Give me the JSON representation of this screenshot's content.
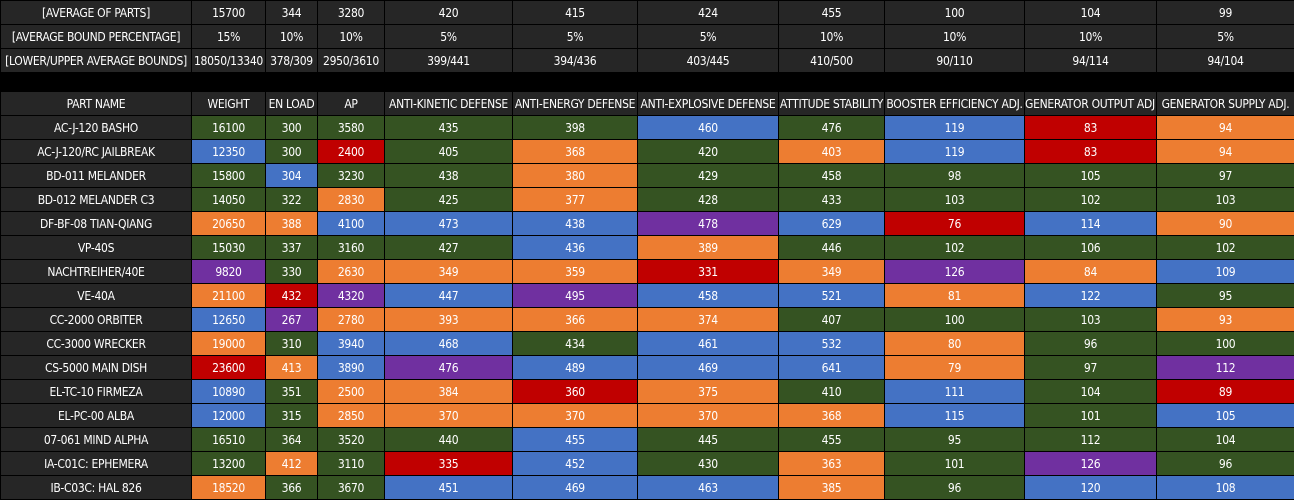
{
  "summary": [
    {
      "label": "[AVERAGE OF PARTS]",
      "values": [
        "15700",
        "344",
        "3280",
        "420",
        "415",
        "424",
        "455",
        "100",
        "104",
        "99"
      ]
    },
    {
      "label": "[AVERAGE BOUND PERCENTAGE]",
      "values": [
        "15%",
        "10%",
        "10%",
        "5%",
        "5%",
        "5%",
        "10%",
        "10%",
        "10%",
        "5%"
      ]
    },
    {
      "label": "[LOWER/UPPER AVERAGE BOUNDS]",
      "values": [
        "18050/13340",
        "378/309",
        "2950/3610",
        "399/441",
        "394/436",
        "403/445",
        "410/500",
        "90/110",
        "94/114",
        "94/104"
      ]
    }
  ],
  "headers": [
    "PART NAME",
    "WEIGHT",
    "EN LOAD",
    "AP",
    "ANTI-KINETIC DEFENSE",
    "ANTI-ENERGY DEFENSE",
    "ANTI-EXPLOSIVE DEFENSE",
    "ATTITUDE STABILITY",
    "BOOSTER EFFICIENCY ADJ.",
    "GENERATOR OUTPUT ADJ.",
    "GENERATOR SUPPLY ADJ."
  ],
  "colors": {
    "green": "#355322",
    "blue": "#4472c4",
    "orange": "#ed7d31",
    "red": "#c00000",
    "purple": "#7030a0",
    "dark": "#262626"
  },
  "rows": [
    {
      "name": "AC-J-120 BASHO",
      "values": [
        "16100",
        "300",
        "3580",
        "435",
        "398",
        "460",
        "476",
        "119",
        "83",
        "94"
      ],
      "colors": [
        "green",
        "green",
        "green",
        "green",
        "green",
        "blue",
        "green",
        "blue",
        "red",
        "orange"
      ]
    },
    {
      "name": "AC-J-120/RC JAILBREAK",
      "values": [
        "12350",
        "300",
        "2400",
        "405",
        "368",
        "420",
        "403",
        "119",
        "83",
        "94"
      ],
      "colors": [
        "blue",
        "green",
        "red",
        "green",
        "orange",
        "green",
        "orange",
        "blue",
        "red",
        "orange"
      ]
    },
    {
      "name": "BD-011 MELANDER",
      "values": [
        "15800",
        "304",
        "3230",
        "438",
        "380",
        "429",
        "458",
        "98",
        "105",
        "97"
      ],
      "colors": [
        "green",
        "blue",
        "green",
        "green",
        "orange",
        "green",
        "green",
        "green",
        "green",
        "green"
      ]
    },
    {
      "name": "BD-012 MELANDER C3",
      "values": [
        "14050",
        "322",
        "2830",
        "425",
        "377",
        "428",
        "433",
        "103",
        "102",
        "103"
      ],
      "colors": [
        "green",
        "green",
        "orange",
        "green",
        "orange",
        "green",
        "green",
        "green",
        "green",
        "green"
      ]
    },
    {
      "name": "DF-BF-08 TIAN-QIANG",
      "values": [
        "20650",
        "388",
        "4100",
        "473",
        "438",
        "478",
        "629",
        "76",
        "114",
        "90"
      ],
      "colors": [
        "orange",
        "orange",
        "blue",
        "blue",
        "blue",
        "purple",
        "blue",
        "red",
        "blue",
        "orange"
      ]
    },
    {
      "name": "VP-40S",
      "values": [
        "15030",
        "337",
        "3160",
        "427",
        "436",
        "389",
        "446",
        "102",
        "106",
        "102"
      ],
      "colors": [
        "green",
        "green",
        "green",
        "green",
        "blue",
        "orange",
        "green",
        "green",
        "green",
        "green"
      ]
    },
    {
      "name": "NACHTREIHER/40E",
      "values": [
        "9820",
        "330",
        "2630",
        "349",
        "359",
        "331",
        "349",
        "126",
        "84",
        "109"
      ],
      "colors": [
        "purple",
        "green",
        "orange",
        "orange",
        "orange",
        "red",
        "orange",
        "purple",
        "orange",
        "blue"
      ]
    },
    {
      "name": "VE-40A",
      "values": [
        "21100",
        "432",
        "4320",
        "447",
        "495",
        "458",
        "521",
        "81",
        "122",
        "95"
      ],
      "colors": [
        "orange",
        "red",
        "purple",
        "blue",
        "purple",
        "blue",
        "blue",
        "orange",
        "blue",
        "green"
      ]
    },
    {
      "name": "CC-2000 ORBITER",
      "values": [
        "12650",
        "267",
        "2780",
        "393",
        "366",
        "374",
        "407",
        "100",
        "103",
        "93"
      ],
      "colors": [
        "blue",
        "purple",
        "orange",
        "orange",
        "orange",
        "orange",
        "green",
        "green",
        "green",
        "orange"
      ]
    },
    {
      "name": "CC-3000 WRECKER",
      "values": [
        "19000",
        "310",
        "3940",
        "468",
        "434",
        "461",
        "532",
        "80",
        "96",
        "100"
      ],
      "colors": [
        "orange",
        "green",
        "blue",
        "blue",
        "green",
        "blue",
        "blue",
        "orange",
        "green",
        "green"
      ]
    },
    {
      "name": "CS-5000 MAIN DISH",
      "values": [
        "23600",
        "413",
        "3890",
        "476",
        "489",
        "469",
        "641",
        "79",
        "97",
        "112"
      ],
      "colors": [
        "red",
        "orange",
        "blue",
        "purple",
        "blue",
        "blue",
        "blue",
        "orange",
        "green",
        "purple"
      ]
    },
    {
      "name": "EL-TC-10 FIRMEZA",
      "values": [
        "10890",
        "351",
        "2500",
        "384",
        "360",
        "375",
        "410",
        "111",
        "104",
        "89"
      ],
      "colors": [
        "blue",
        "green",
        "orange",
        "orange",
        "red",
        "orange",
        "green",
        "blue",
        "green",
        "red"
      ]
    },
    {
      "name": "EL-PC-00 ALBA",
      "values": [
        "12000",
        "315",
        "2850",
        "370",
        "370",
        "370",
        "368",
        "115",
        "101",
        "105"
      ],
      "colors": [
        "blue",
        "green",
        "orange",
        "orange",
        "orange",
        "orange",
        "orange",
        "blue",
        "green",
        "blue"
      ]
    },
    {
      "name": "07-061 MIND ALPHA",
      "values": [
        "16510",
        "364",
        "3520",
        "440",
        "455",
        "445",
        "455",
        "95",
        "112",
        "104"
      ],
      "colors": [
        "green",
        "green",
        "green",
        "green",
        "blue",
        "green",
        "green",
        "green",
        "green",
        "green"
      ]
    },
    {
      "name": "IA-C01C: EPHEMERA",
      "values": [
        "13200",
        "412",
        "3110",
        "335",
        "452",
        "430",
        "363",
        "101",
        "126",
        "96"
      ],
      "colors": [
        "green",
        "orange",
        "green",
        "red",
        "blue",
        "green",
        "orange",
        "green",
        "purple",
        "green"
      ]
    },
    {
      "name": "IB-C03C: HAL 826",
      "values": [
        "18520",
        "366",
        "3670",
        "451",
        "469",
        "463",
        "385",
        "96",
        "120",
        "108"
      ],
      "colors": [
        "orange",
        "green",
        "green",
        "blue",
        "blue",
        "blue",
        "orange",
        "green",
        "blue",
        "blue"
      ]
    }
  ]
}
